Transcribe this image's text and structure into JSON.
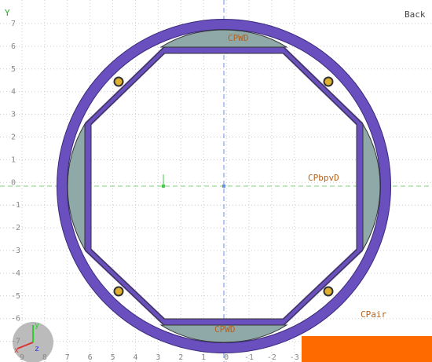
{
  "view": {
    "axis_label": "Y",
    "view_name": "Back",
    "labels": [
      "CPWD",
      "CPWD",
      "CPbpvD",
      "CPair"
    ],
    "y_ticks": [
      "7",
      "6",
      "5",
      "4",
      "3",
      "2",
      "1",
      "0",
      "-1",
      "-2",
      "-3",
      "-4",
      "-5",
      "-6",
      "-7"
    ],
    "x_ticks": [
      "9",
      "8",
      "7",
      "6",
      "5",
      "4",
      "3",
      "2",
      "1",
      "0",
      "-1",
      "-2",
      "-3"
    ],
    "gizmo": [
      "x",
      "y",
      "z"
    ]
  }
}
